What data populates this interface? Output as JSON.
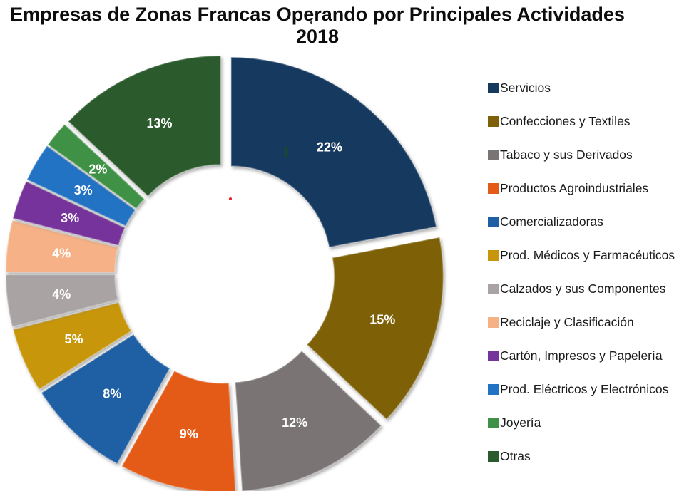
{
  "title": {
    "line1": "Empresas de Zonas Francas Operando por Principales Actividades",
    "line2": "2018"
  },
  "chart_data": {
    "type": "pie",
    "subtype": "exploded-donut",
    "title": "Empresas de Zonas Francas Operando por Principales Actividades 2018",
    "categories": [
      "Servicios",
      "Confecciones y Textiles",
      "Tabaco y sus Derivados",
      "Productos Agroindustriales",
      "Comercializadoras",
      "Prod. Médicos y Farmacéuticos",
      "Calzados y sus Componentes",
      "Reciclaje y Clasificación",
      "Cartón, Impresos y Papelería",
      "Prod. Eléctricos y Electrónicos",
      "Joyería",
      "Otras"
    ],
    "values": [
      22,
      15,
      12,
      9,
      8,
      5,
      4,
      4,
      3,
      3,
      2,
      13
    ],
    "data_labels": [
      "22%",
      "15%",
      "12%",
      "9%",
      "8%",
      "5%",
      "4%",
      "4%",
      "3%",
      "3%",
      "2%",
      "13%"
    ],
    "colors": [
      "#16395F",
      "#7E6106",
      "#7B7474",
      "#E45B17",
      "#1F5FA4",
      "#C8960A",
      "#A9A3A4",
      "#F6B286",
      "#76339B",
      "#2273C4",
      "#3F9145",
      "#2B5B2C"
    ],
    "data_label_color": "#FFFFFF",
    "start_angle_deg": 0,
    "direction": "clockwise",
    "donut_hole_ratio": 0.48,
    "legend_position": "right",
    "grid": false
  }
}
